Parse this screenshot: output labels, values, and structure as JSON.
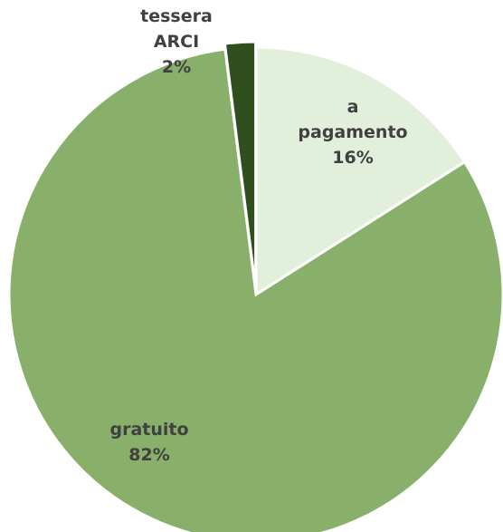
{
  "chart_data": {
    "type": "pie",
    "categories": [
      "a pagamento",
      "gratuito",
      "tessera ARCI"
    ],
    "values": [
      16,
      82,
      2
    ],
    "value_labels": [
      "16%",
      "82%",
      "2%"
    ],
    "colors": [
      "#e2efda",
      "#88b06b",
      "#2f4f1f"
    ]
  }
}
